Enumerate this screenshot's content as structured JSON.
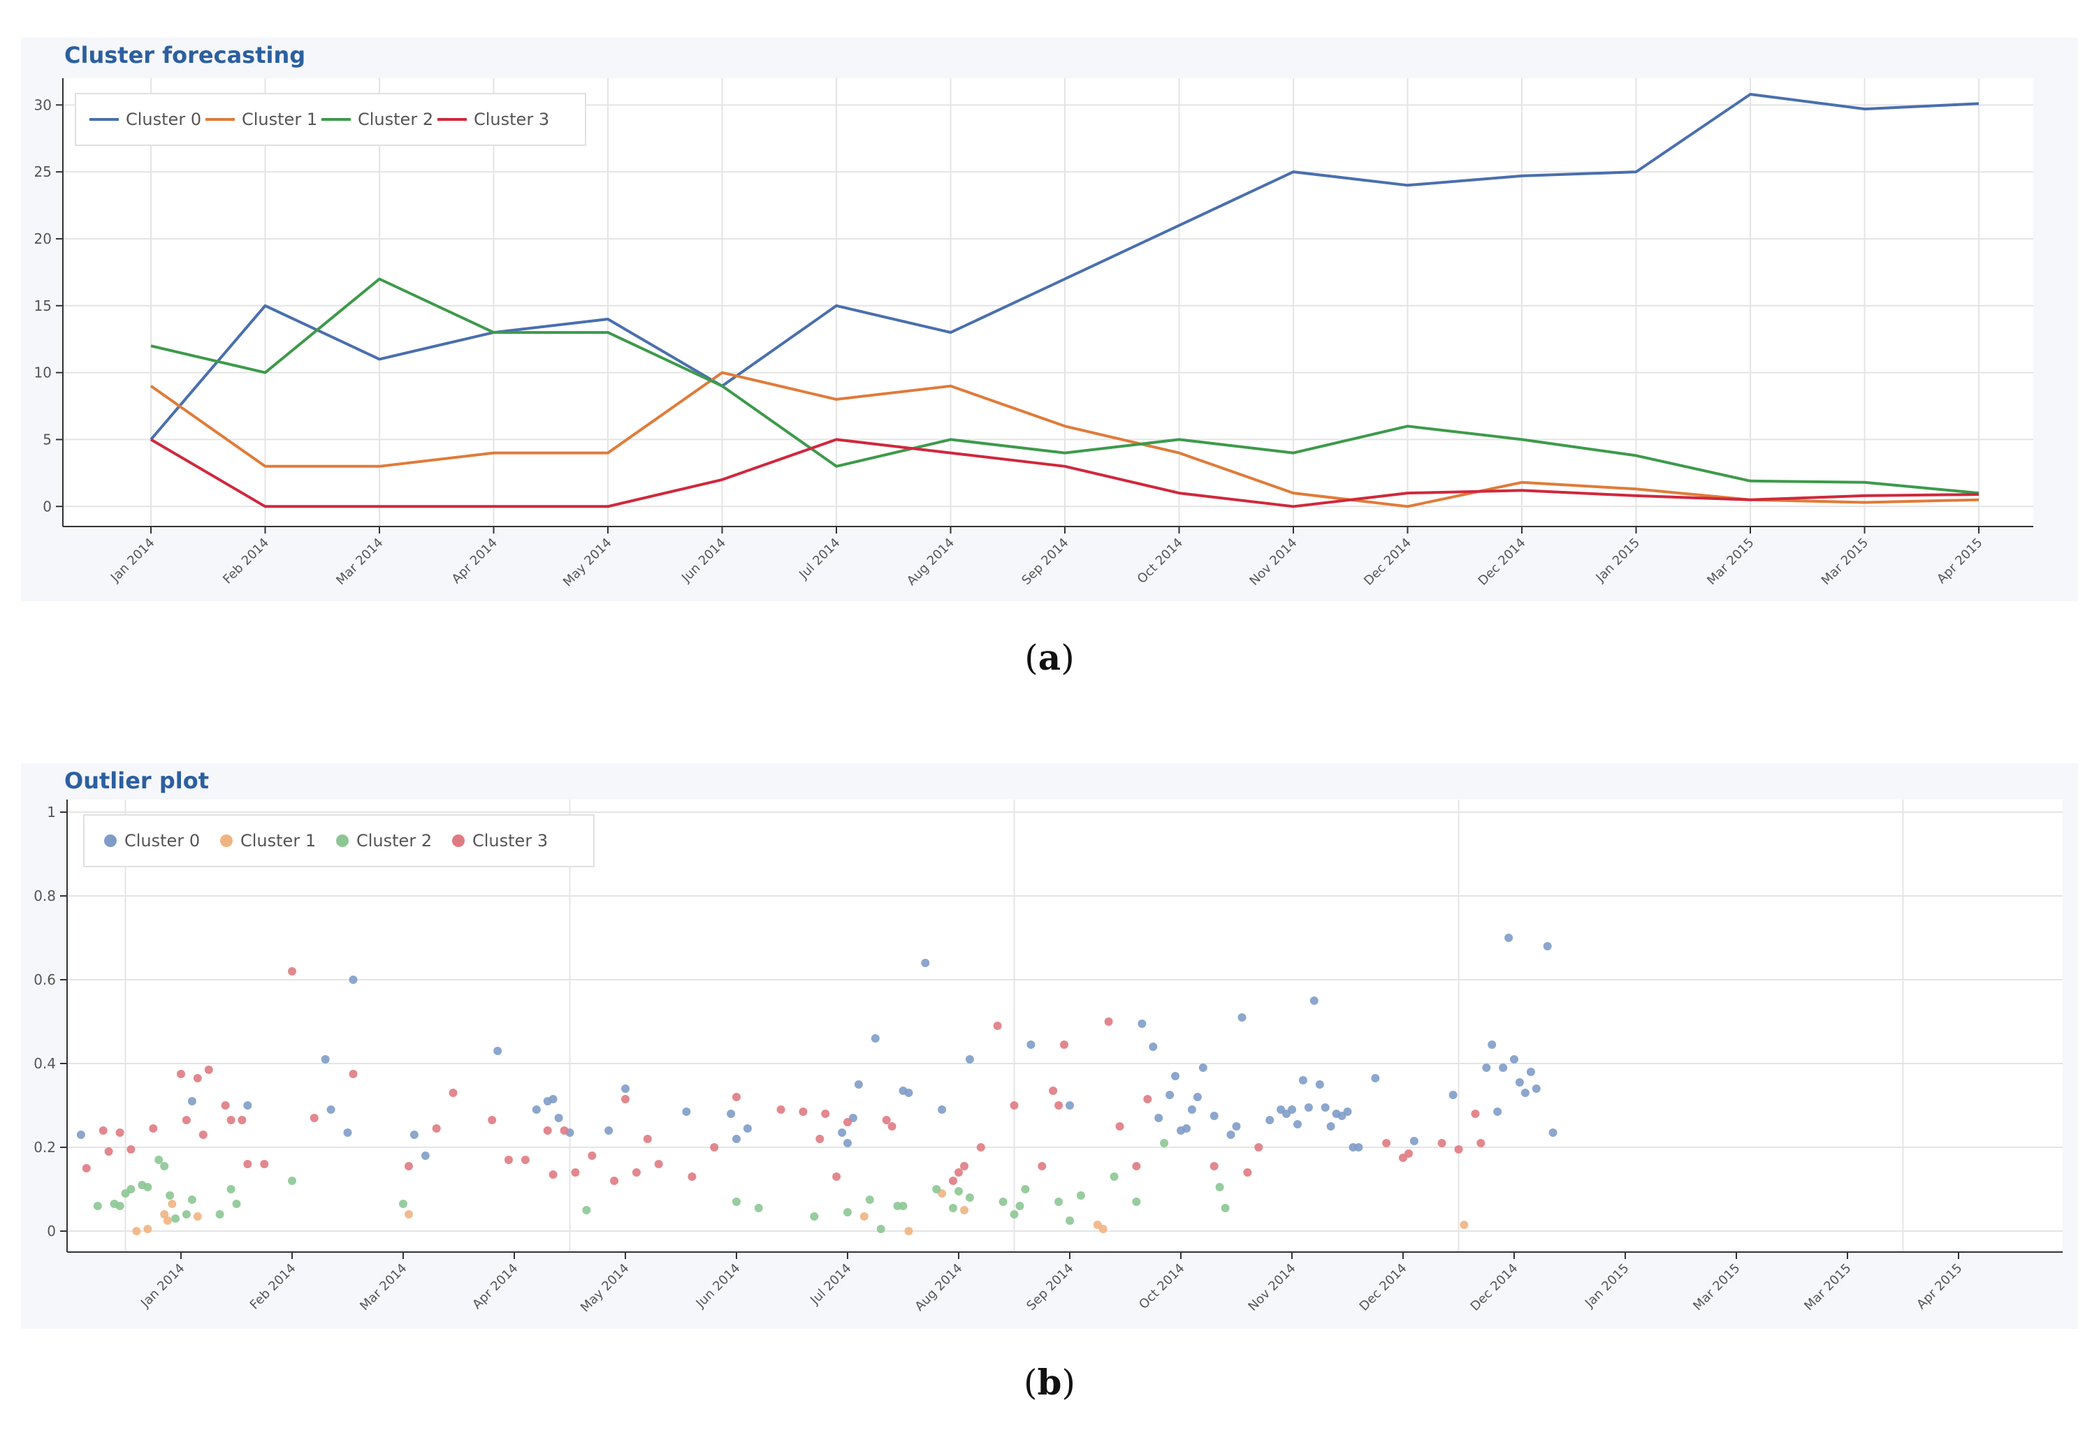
{
  "captions": {
    "a": "a",
    "b": "b"
  },
  "chart_data": [
    {
      "type": "line",
      "title": "Cluster forecasting",
      "xlabel": "",
      "ylabel": "",
      "categories": [
        "Jan 2014",
        "Feb 2014",
        "Mar 2014",
        "Apr 2014",
        "May 2014",
        "Jun 2014",
        "Jul 2014",
        "Aug 2014",
        "Sep 2014",
        "Oct 2014",
        "Nov 2014",
        "Dec 2014",
        "Dec 2014",
        "Jan 2015",
        "Mar 2015",
        "Mar 2015",
        "Apr 2015"
      ],
      "ylim": [
        -1.5,
        32
      ],
      "yticks": [
        0,
        5,
        10,
        15,
        20,
        25,
        30
      ],
      "grid": true,
      "legend": "top-left",
      "series": [
        {
          "name": "Cluster 0",
          "color": "#4a6fae",
          "values": [
            5,
            15,
            11,
            13,
            14,
            9,
            15,
            13,
            17,
            21,
            25,
            24,
            24.7,
            25,
            30.8,
            29.7,
            30.1
          ]
        },
        {
          "name": "Cluster 1",
          "color": "#e07b39",
          "values": [
            9,
            3,
            3,
            4,
            4,
            10,
            8,
            9,
            6,
            4,
            1,
            0,
            1.8,
            1.3,
            0.5,
            0.3,
            0.5
          ]
        },
        {
          "name": "Cluster 2",
          "color": "#3d9a4b",
          "values": [
            12,
            10,
            17,
            13,
            13,
            9,
            3,
            5,
            4,
            5,
            4,
            6,
            5,
            3.8,
            1.9,
            1.8,
            1
          ]
        },
        {
          "name": "Cluster 3",
          "color": "#d0283c",
          "values": [
            5,
            0,
            0,
            0,
            0,
            2,
            5,
            4,
            3,
            1,
            0,
            1,
            1.2,
            0.8,
            0.5,
            0.8,
            0.9
          ]
        }
      ]
    },
    {
      "type": "scatter",
      "title": "Outlier plot",
      "xlabel": "",
      "ylabel": "",
      "x_ticks": [
        "Jan 2014",
        "Feb 2014",
        "Mar 2014",
        "Apr 2014",
        "May 2014",
        "Jun 2014",
        "Jul 2014",
        "Aug 2014",
        "Sep 2014",
        "Oct 2014",
        "Nov 2014",
        "Dec 2014",
        "Dec 2014",
        "Jan 2015",
        "Mar 2015",
        "Mar 2015",
        "Apr 2015"
      ],
      "xlim": [
        -1.0,
        17.2
      ],
      "ylim": [
        -0.05,
        1.03
      ],
      "yticks": [
        0,
        0.2,
        0.4,
        0.6,
        0.8,
        1
      ],
      "grid": true,
      "legend": "top-left",
      "series": [
        {
          "name": "Cluster 0",
          "color": "#7f9cc8",
          "points": [
            [
              -0.9,
              0.23
            ],
            [
              0.1,
              0.31
            ],
            [
              0.6,
              0.3
            ],
            [
              1.3,
              0.41
            ],
            [
              1.35,
              0.29
            ],
            [
              1.5,
              0.235
            ],
            [
              1.55,
              0.6
            ],
            [
              2.1,
              0.23
            ],
            [
              2.2,
              0.18
            ],
            [
              2.85,
              0.43
            ],
            [
              3.2,
              0.29
            ],
            [
              3.3,
              0.31
            ],
            [
              3.35,
              0.315
            ],
            [
              3.4,
              0.27
            ],
            [
              3.5,
              0.235
            ],
            [
              3.85,
              0.24
            ],
            [
              4.0,
              0.34
            ],
            [
              4.55,
              0.285
            ],
            [
              4.95,
              0.28
            ],
            [
              5.0,
              0.22
            ],
            [
              5.1,
              0.245
            ],
            [
              5.95,
              0.235
            ],
            [
              6.0,
              0.21
            ],
            [
              6.05,
              0.27
            ],
            [
              6.1,
              0.35
            ],
            [
              6.25,
              0.46
            ],
            [
              6.5,
              0.335
            ],
            [
              6.55,
              0.33
            ],
            [
              6.7,
              0.64
            ],
            [
              6.85,
              0.29
            ],
            [
              7.1,
              0.41
            ],
            [
              7.65,
              0.445
            ],
            [
              8.0,
              0.3
            ],
            [
              8.65,
              0.495
            ],
            [
              8.75,
              0.44
            ],
            [
              8.8,
              0.27
            ],
            [
              8.9,
              0.325
            ],
            [
              8.95,
              0.37
            ],
            [
              9.0,
              0.24
            ],
            [
              9.05,
              0.245
            ],
            [
              9.1,
              0.29
            ],
            [
              9.15,
              0.32
            ],
            [
              9.2,
              0.39
            ],
            [
              9.3,
              0.275
            ],
            [
              9.45,
              0.23
            ],
            [
              9.5,
              0.25
            ],
            [
              9.55,
              0.51
            ],
            [
              9.8,
              0.265
            ],
            [
              9.9,
              0.29
            ],
            [
              9.95,
              0.28
            ],
            [
              10.0,
              0.29
            ],
            [
              10.05,
              0.255
            ],
            [
              10.1,
              0.36
            ],
            [
              10.15,
              0.295
            ],
            [
              10.2,
              0.55
            ],
            [
              10.25,
              0.35
            ],
            [
              10.3,
              0.295
            ],
            [
              10.35,
              0.25
            ],
            [
              10.4,
              0.28
            ],
            [
              10.45,
              0.275
            ],
            [
              10.5,
              0.285
            ],
            [
              10.55,
              0.2
            ],
            [
              10.6,
              0.2
            ],
            [
              10.75,
              0.365
            ],
            [
              11.1,
              0.215
            ],
            [
              11.45,
              0.325
            ],
            [
              11.75,
              0.39
            ],
            [
              11.8,
              0.445
            ],
            [
              11.85,
              0.285
            ],
            [
              11.9,
              0.39
            ],
            [
              11.95,
              0.7
            ],
            [
              12.0,
              0.41
            ],
            [
              12.05,
              0.355
            ],
            [
              12.1,
              0.33
            ],
            [
              12.15,
              0.38
            ],
            [
              12.2,
              0.34
            ],
            [
              12.3,
              0.68
            ],
            [
              12.35,
              0.235
            ]
          ]
        },
        {
          "name": "Cluster 1",
          "color": "#f0b482",
          "points": [
            [
              -0.4,
              0.0
            ],
            [
              -0.3,
              0.005
            ],
            [
              -0.15,
              0.04
            ],
            [
              -0.12,
              0.025
            ],
            [
              -0.08,
              0.065
            ],
            [
              0.15,
              0.035
            ],
            [
              2.05,
              0.04
            ],
            [
              6.15,
              0.035
            ],
            [
              6.55,
              0.0
            ],
            [
              6.85,
              0.09
            ],
            [
              7.05,
              0.05
            ],
            [
              8.25,
              0.015
            ],
            [
              8.3,
              0.005
            ],
            [
              11.55,
              0.015
            ]
          ]
        },
        {
          "name": "Cluster 2",
          "color": "#8cc693",
          "points": [
            [
              -0.75,
              0.06
            ],
            [
              -0.6,
              0.065
            ],
            [
              -0.55,
              0.06
            ],
            [
              -0.5,
              0.09
            ],
            [
              -0.45,
              0.1
            ],
            [
              -0.35,
              0.11
            ],
            [
              -0.3,
              0.105
            ],
            [
              -0.2,
              0.17
            ],
            [
              -0.15,
              0.155
            ],
            [
              -0.1,
              0.085
            ],
            [
              -0.05,
              0.03
            ],
            [
              0.05,
              0.04
            ],
            [
              0.1,
              0.075
            ],
            [
              0.35,
              0.04
            ],
            [
              0.45,
              0.1
            ],
            [
              0.5,
              0.065
            ],
            [
              1.0,
              0.12
            ],
            [
              2.0,
              0.065
            ],
            [
              3.65,
              0.05
            ],
            [
              5.0,
              0.07
            ],
            [
              5.2,
              0.055
            ],
            [
              5.7,
              0.035
            ],
            [
              6.0,
              0.045
            ],
            [
              6.2,
              0.075
            ],
            [
              6.3,
              0.005
            ],
            [
              6.45,
              0.06
            ],
            [
              6.5,
              0.06
            ],
            [
              6.8,
              0.1
            ],
            [
              6.95,
              0.055
            ],
            [
              7.0,
              0.095
            ],
            [
              7.1,
              0.08
            ],
            [
              7.4,
              0.07
            ],
            [
              7.5,
              0.04
            ],
            [
              7.55,
              0.06
            ],
            [
              7.6,
              0.1
            ],
            [
              7.9,
              0.07
            ],
            [
              8.0,
              0.025
            ],
            [
              8.1,
              0.085
            ],
            [
              8.4,
              0.13
            ],
            [
              8.6,
              0.07
            ],
            [
              8.85,
              0.21
            ],
            [
              9.35,
              0.105
            ],
            [
              9.4,
              0.055
            ]
          ]
        },
        {
          "name": "Cluster 3",
          "color": "#e07a82",
          "points": [
            [
              -0.85,
              0.15
            ],
            [
              -0.7,
              0.24
            ],
            [
              -0.65,
              0.19
            ],
            [
              -0.55,
              0.235
            ],
            [
              -0.45,
              0.195
            ],
            [
              -0.25,
              0.245
            ],
            [
              0.0,
              0.375
            ],
            [
              0.05,
              0.265
            ],
            [
              0.15,
              0.365
            ],
            [
              0.2,
              0.23
            ],
            [
              0.25,
              0.385
            ],
            [
              0.4,
              0.3
            ],
            [
              0.45,
              0.265
            ],
            [
              0.55,
              0.265
            ],
            [
              0.6,
              0.16
            ],
            [
              0.75,
              0.16
            ],
            [
              1.0,
              0.62
            ],
            [
              1.2,
              0.27
            ],
            [
              1.55,
              0.375
            ],
            [
              2.05,
              0.155
            ],
            [
              2.3,
              0.245
            ],
            [
              2.45,
              0.33
            ],
            [
              2.8,
              0.265
            ],
            [
              2.95,
              0.17
            ],
            [
              3.1,
              0.17
            ],
            [
              3.3,
              0.24
            ],
            [
              3.35,
              0.135
            ],
            [
              3.45,
              0.24
            ],
            [
              3.55,
              0.14
            ],
            [
              3.7,
              0.18
            ],
            [
              3.9,
              0.12
            ],
            [
              4.0,
              0.315
            ],
            [
              4.1,
              0.14
            ],
            [
              4.2,
              0.22
            ],
            [
              4.3,
              0.16
            ],
            [
              4.6,
              0.13
            ],
            [
              4.8,
              0.2
            ],
            [
              5.0,
              0.32
            ],
            [
              5.4,
              0.29
            ],
            [
              5.6,
              0.285
            ],
            [
              5.75,
              0.22
            ],
            [
              5.8,
              0.28
            ],
            [
              5.9,
              0.13
            ],
            [
              6.0,
              0.26
            ],
            [
              6.35,
              0.265
            ],
            [
              6.4,
              0.25
            ],
            [
              6.95,
              0.12
            ],
            [
              7.0,
              0.14
            ],
            [
              7.05,
              0.155
            ],
            [
              7.2,
              0.2
            ],
            [
              7.35,
              0.49
            ],
            [
              7.5,
              0.3
            ],
            [
              7.75,
              0.155
            ],
            [
              7.85,
              0.335
            ],
            [
              7.9,
              0.3
            ],
            [
              7.95,
              0.445
            ],
            [
              8.35,
              0.5
            ],
            [
              8.45,
              0.25
            ],
            [
              8.6,
              0.155
            ],
            [
              8.7,
              0.315
            ],
            [
              9.3,
              0.155
            ],
            [
              9.6,
              0.14
            ],
            [
              9.7,
              0.2
            ],
            [
              10.85,
              0.21
            ],
            [
              11.0,
              0.175
            ],
            [
              11.05,
              0.185
            ],
            [
              11.35,
              0.21
            ],
            [
              11.5,
              0.195
            ],
            [
              11.65,
              0.28
            ],
            [
              11.7,
              0.21
            ]
          ]
        }
      ]
    }
  ]
}
